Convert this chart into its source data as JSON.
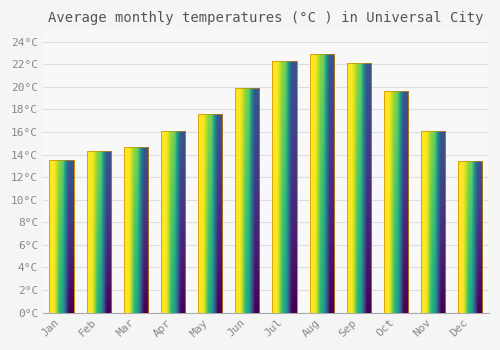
{
  "title": "Average monthly temperatures (°C ) in Universal City",
  "months": [
    "Jan",
    "Feb",
    "Mar",
    "Apr",
    "May",
    "Jun",
    "Jul",
    "Aug",
    "Sep",
    "Oct",
    "Nov",
    "Dec"
  ],
  "values": [
    13.5,
    14.3,
    14.7,
    16.1,
    17.6,
    19.9,
    22.3,
    22.9,
    22.1,
    19.6,
    16.1,
    13.4
  ],
  "bar_color_top": "#FFCC44",
  "bar_color_bottom": "#FF9900",
  "bar_edge_color": "#CC8800",
  "background_color": "#F5F5F5",
  "plot_bg_color": "#F8F8F8",
  "grid_color": "#DDDDDD",
  "ytick_labels": [
    "0°C",
    "2°C",
    "4°C",
    "6°C",
    "8°C",
    "10°C",
    "12°C",
    "14°C",
    "16°C",
    "18°C",
    "20°C",
    "22°C",
    "24°C"
  ],
  "ytick_values": [
    0,
    2,
    4,
    6,
    8,
    10,
    12,
    14,
    16,
    18,
    20,
    22,
    24
  ],
  "ylim": [
    0,
    25
  ],
  "title_fontsize": 10,
  "tick_fontsize": 8,
  "tick_color": "#888888",
  "title_color": "#555555",
  "bar_width": 0.65
}
